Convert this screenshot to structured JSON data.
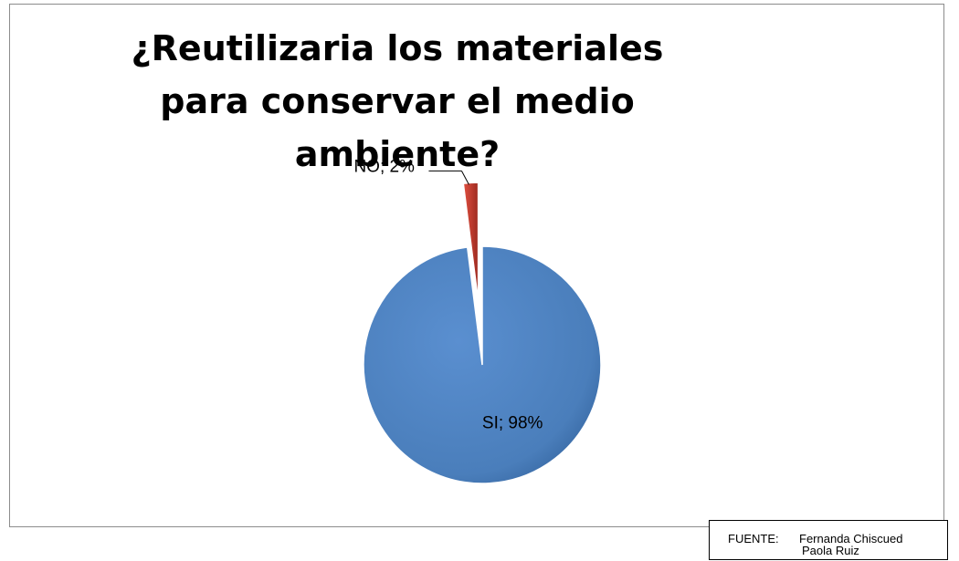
{
  "chart_data": {
    "type": "pie",
    "title": "¿Reutilizaria los materiales para conservar el medio ambiente?",
    "slices": [
      {
        "label": "SI",
        "value": 98,
        "data_label": "SI; 98%",
        "color": "#4a7ebb"
      },
      {
        "label": "NO",
        "value": 2,
        "data_label": "NO; 2%",
        "color": "#c0392b"
      }
    ],
    "style": "3d-exploded"
  },
  "source": {
    "label": "FUENTE:",
    "line1": "Fernanda Chiscued",
    "line2": "Paola Ruiz"
  }
}
